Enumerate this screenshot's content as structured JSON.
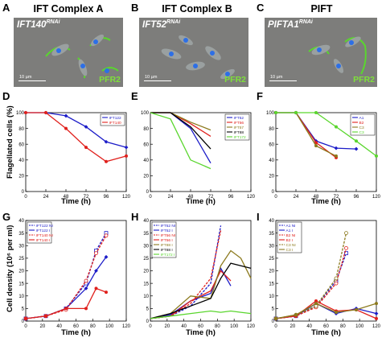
{
  "panels": {
    "A": {
      "letter": "A",
      "title": "IFT Complex A",
      "cell": "IFT140",
      "sup": "RNAi",
      "scale": "10 µm",
      "stain": "PFR2"
    },
    "B": {
      "letter": "B",
      "title": "IFT Complex B",
      "cell": "IFT52",
      "sup": "RNAi",
      "scale": "10 µm",
      "stain": "PFR2"
    },
    "C": {
      "letter": "C",
      "title": "PIFT",
      "cell": "PIFTA1",
      "sup": "RNAi",
      "scale": "10 µm",
      "stain": "PFR2"
    }
  },
  "colors": {
    "blue": "#1c1cc8",
    "red": "#e0201c",
    "green": "#5ad62e",
    "black": "#000000",
    "olive": "#8c7a1e",
    "orange": "#e06a1e",
    "purple": "#8c2a8c"
  },
  "chart_data": [
    {
      "id": "D",
      "letter": "D",
      "type": "line",
      "xlabel": "Time (h)",
      "ylabel": "Flagellated cells (%)",
      "xlim": [
        0,
        120
      ],
      "ylim": [
        0,
        100
      ],
      "xticks": [
        0,
        24,
        48,
        72,
        96,
        120
      ],
      "yticks": [
        0,
        20,
        40,
        60,
        80,
        100
      ],
      "legend": "top-right",
      "series": [
        {
          "name": "IFT122",
          "color": "#1c1cc8",
          "dash": false,
          "marker": "diamond",
          "x": [
            0,
            24,
            48,
            72,
            96,
            120
          ],
          "y": [
            100,
            100,
            96,
            82,
            63,
            56
          ]
        },
        {
          "name": "IFT140",
          "color": "#e0201c",
          "dash": false,
          "marker": "circle",
          "x": [
            0,
            24,
            48,
            72,
            96,
            120
          ],
          "y": [
            100,
            100,
            80,
            56,
            38,
            45
          ]
        }
      ]
    },
    {
      "id": "E",
      "letter": "E",
      "type": "line",
      "xlabel": "Time (h)",
      "ylabel": "",
      "xlim": [
        0,
        120
      ],
      "ylim": [
        0,
        100
      ],
      "xticks": [
        0,
        24,
        48,
        72,
        96,
        120
      ],
      "yticks": [
        0,
        20,
        40,
        60,
        80,
        100
      ],
      "legend": "top-right",
      "series": [
        {
          "name": "IFT52",
          "color": "#1c1cc8",
          "dash": false,
          "marker": "none",
          "x": [
            0,
            24,
            48,
            72
          ],
          "y": [
            100,
            100,
            80,
            36
          ]
        },
        {
          "name": "IFT56",
          "color": "#e0201c",
          "dash": false,
          "marker": "none",
          "x": [
            0,
            24,
            48,
            72
          ],
          "y": [
            100,
            100,
            86,
            70
          ]
        },
        {
          "name": "IFT57",
          "color": "#8c7a1e",
          "dash": false,
          "marker": "none",
          "x": [
            0,
            24,
            48,
            72
          ],
          "y": [
            100,
            100,
            88,
            78
          ]
        },
        {
          "name": "IFT88",
          "color": "#000000",
          "dash": false,
          "marker": "none",
          "x": [
            0,
            24,
            48,
            72
          ],
          "y": [
            100,
            100,
            82,
            54
          ]
        },
        {
          "name": "IFT172",
          "color": "#5ad62e",
          "dash": false,
          "marker": "none",
          "x": [
            0,
            24,
            48,
            72
          ],
          "y": [
            100,
            92,
            40,
            29
          ]
        }
      ]
    },
    {
      "id": "F",
      "letter": "F",
      "type": "line",
      "xlabel": "Time (h)",
      "ylabel": "",
      "xlim": [
        0,
        120
      ],
      "ylim": [
        0,
        100
      ],
      "xticks": [
        0,
        24,
        48,
        72,
        96,
        120
      ],
      "yticks": [
        0,
        20,
        40,
        60,
        80,
        100
      ],
      "legend": "top-right",
      "series": [
        {
          "name": "A1",
          "color": "#1c1cc8",
          "dash": false,
          "marker": "diamond",
          "x": [
            0,
            24,
            48,
            72,
            96
          ],
          "y": [
            100,
            100,
            64,
            55,
            54
          ]
        },
        {
          "name": "B2",
          "color": "#e0201c",
          "dash": false,
          "marker": "circle",
          "x": [
            0,
            24,
            48,
            72
          ],
          "y": [
            100,
            100,
            62,
            43
          ]
        },
        {
          "name": "C3",
          "color": "#8c7a1e",
          "dash": false,
          "marker": "circle",
          "x": [
            0,
            24,
            48,
            72
          ],
          "y": [
            100,
            100,
            58,
            45
          ]
        },
        {
          "name": "C3",
          "color": "#5ad62e",
          "dash": false,
          "marker": "circle",
          "x": [
            0,
            24,
            48,
            72,
            96,
            120
          ],
          "y": [
            100,
            100,
            100,
            82,
            64,
            45
          ]
        }
      ]
    },
    {
      "id": "G",
      "letter": "G",
      "type": "line",
      "xlabel": "Time (h)",
      "ylabel": "Cell density (10⁶ per ml)",
      "xlim": [
        0,
        120
      ],
      "ylim": [
        0,
        40
      ],
      "xticks": [
        0,
        20,
        40,
        60,
        80,
        100,
        120
      ],
      "yticks": [
        0,
        5,
        10,
        15,
        20,
        25,
        30,
        35,
        40
      ],
      "legend": "top-left",
      "series": [
        {
          "name": "IFT122 NI",
          "color": "#1c1cc8",
          "dash": true,
          "marker": "square-open",
          "x": [
            0,
            24,
            48,
            72,
            84,
            96
          ],
          "y": [
            1,
            2,
            5,
            15,
            28,
            35
          ]
        },
        {
          "name": "IFT122 I",
          "color": "#1c1cc8",
          "dash": false,
          "marker": "diamond",
          "x": [
            0,
            24,
            48,
            72,
            84,
            96
          ],
          "y": [
            1,
            2,
            5,
            13,
            20,
            25.5
          ]
        },
        {
          "name": "IFT140 NI",
          "color": "#e0201c",
          "dash": true,
          "marker": "circle-open",
          "x": [
            0,
            24,
            48,
            72,
            84,
            96
          ],
          "y": [
            1,
            2,
            4.5,
            16,
            27,
            34
          ]
        },
        {
          "name": "IFT140 I",
          "color": "#e0201c",
          "dash": false,
          "marker": "circle",
          "x": [
            0,
            24,
            48,
            72,
            84,
            96
          ],
          "y": [
            1,
            2,
            5,
            5,
            13,
            11.5
          ]
        }
      ]
    },
    {
      "id": "H",
      "letter": "H",
      "type": "line",
      "xlabel": "Time (h)",
      "ylabel": "",
      "xlim": [
        0,
        120
      ],
      "ylim": [
        0,
        40
      ],
      "xticks": [
        0,
        20,
        40,
        60,
        80,
        100,
        120
      ],
      "yticks": [
        0,
        5,
        10,
        15,
        20,
        25,
        30,
        35,
        40
      ],
      "legend": "top-left",
      "series": [
        {
          "name": "IFT52 NI",
          "color": "#1c1cc8",
          "dash": true,
          "marker": "none",
          "x": [
            0,
            24,
            48,
            72,
            84
          ],
          "y": [
            1,
            2,
            6,
            15,
            38
          ]
        },
        {
          "name": "IFT52 I",
          "color": "#1c1cc8",
          "dash": false,
          "marker": "none",
          "x": [
            0,
            24,
            48,
            72,
            84,
            96
          ],
          "y": [
            1,
            2.5,
            8,
            11,
            21,
            14
          ]
        },
        {
          "name": "IFT56 NI",
          "color": "#e0201c",
          "dash": true,
          "marker": "none",
          "x": [
            0,
            24,
            48,
            72,
            84
          ],
          "y": [
            1,
            2,
            7,
            17,
            36
          ]
        },
        {
          "name": "IFT56 I",
          "color": "#e0201c",
          "dash": false,
          "marker": "none",
          "x": [
            0,
            24,
            48,
            72,
            84,
            96
          ],
          "y": [
            1,
            2,
            8,
            12,
            20,
            16
          ]
        },
        {
          "name": "IFT88 I",
          "color": "#8c7a1e",
          "dash": false,
          "marker": "none",
          "x": [
            0,
            24,
            48,
            72,
            84,
            96,
            108,
            120
          ],
          "y": [
            1,
            3,
            10,
            9,
            22,
            28,
            25,
            17
          ]
        },
        {
          "name": "IFT88 I",
          "color": "#000000",
          "dash": false,
          "marker": "none",
          "x": [
            0,
            24,
            48,
            72,
            84,
            96,
            108,
            120
          ],
          "y": [
            1,
            3,
            6,
            9,
            17,
            23,
            22,
            21
          ]
        },
        {
          "name": "IFT172 I",
          "color": "#5ad62e",
          "dash": false,
          "marker": "none",
          "x": [
            0,
            24,
            48,
            72,
            84,
            96,
            108,
            120
          ],
          "y": [
            1,
            2,
            3,
            4,
            3.5,
            4,
            3.5,
            3
          ]
        }
      ]
    },
    {
      "id": "I",
      "letter": "I",
      "type": "line",
      "xlabel": "Time (h)",
      "ylabel": "",
      "xlim": [
        0,
        120
      ],
      "ylim": [
        0,
        40
      ],
      "xticks": [
        0,
        20,
        40,
        60,
        80,
        100,
        120
      ],
      "yticks": [
        0,
        5,
        10,
        15,
        20,
        25,
        30,
        35,
        40
      ],
      "legend": "top-left",
      "series": [
        {
          "name": "A1 NI",
          "color": "#1c1cc8",
          "dash": true,
          "marker": "square-open",
          "x": [
            0,
            24,
            48,
            72,
            84
          ],
          "y": [
            1,
            2,
            6,
            16,
            27
          ]
        },
        {
          "name": "A1 I",
          "color": "#1c1cc8",
          "dash": false,
          "marker": "diamond",
          "x": [
            0,
            24,
            48,
            72,
            96,
            120
          ],
          "y": [
            1,
            2,
            7,
            3,
            5,
            3
          ]
        },
        {
          "name": "B2 NI",
          "color": "#e0201c",
          "dash": true,
          "marker": "circle-open",
          "x": [
            0,
            24,
            48,
            72,
            84
          ],
          "y": [
            1,
            2,
            5.5,
            15,
            29
          ]
        },
        {
          "name": "B2 I",
          "color": "#e0201c",
          "dash": false,
          "marker": "circle",
          "x": [
            0,
            24,
            48,
            72,
            96,
            120
          ],
          "y": [
            1,
            2,
            8,
            4,
            4.5,
            1
          ]
        },
        {
          "name": "C3 NI",
          "color": "#8c7a1e",
          "dash": true,
          "marker": "circle-open",
          "x": [
            0,
            24,
            48,
            72,
            84
          ],
          "y": [
            1,
            2.5,
            6,
            17,
            35
          ]
        },
        {
          "name": "C3 I",
          "color": "#8c7a1e",
          "dash": false,
          "marker": "circle",
          "x": [
            0,
            24,
            48,
            72,
            96,
            120
          ],
          "y": [
            1,
            2.5,
            7,
            3.5,
            4.5,
            7
          ]
        }
      ]
    }
  ]
}
